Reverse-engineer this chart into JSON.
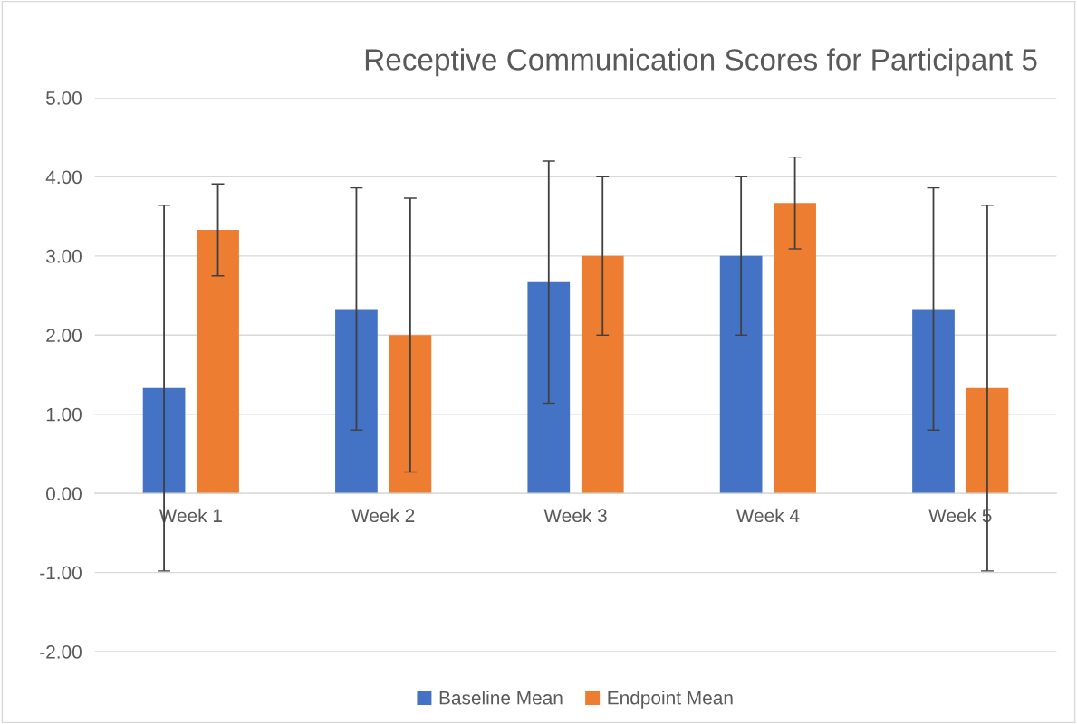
{
  "chart_data": {
    "type": "bar",
    "title": "Receptive Communication Scores for Participant 5",
    "categories": [
      "Week 1",
      "Week 2",
      "Week 3",
      "Week 4",
      "Week 5"
    ],
    "series": [
      {
        "name": "Baseline Mean",
        "color": "#4472c4",
        "values": [
          1.33,
          2.33,
          2.67,
          3.0,
          2.33
        ],
        "errors": [
          2.31,
          1.53,
          1.53,
          1.0,
          1.53
        ]
      },
      {
        "name": "Endpoint Mean",
        "color": "#ed7d31",
        "values": [
          3.33,
          2.0,
          3.0,
          3.67,
          1.33
        ],
        "errors": [
          0.58,
          1.73,
          1.0,
          0.58,
          2.31
        ]
      }
    ],
    "ylim": [
      -2,
      5
    ],
    "yticks": [
      {
        "value": -2,
        "label": "-2.00"
      },
      {
        "value": -1,
        "label": "-1.00"
      },
      {
        "value": 0,
        "label": "0.00"
      },
      {
        "value": 1,
        "label": "1.00"
      },
      {
        "value": 2,
        "label": "2.00"
      },
      {
        "value": 3,
        "label": "3.00"
      },
      {
        "value": 4,
        "label": "4.00"
      },
      {
        "value": 5,
        "label": "5.00"
      }
    ],
    "grid": "y",
    "legend": "bottom"
  }
}
